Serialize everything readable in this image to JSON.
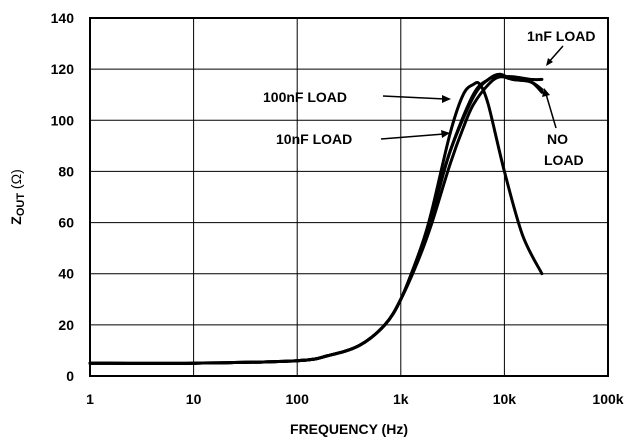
{
  "chart_data": {
    "type": "line",
    "xlabel": "FREQUENCY (Hz)",
    "ylabel_main": "Z",
    "ylabel_sub": "OUT",
    "ylabel_unit": " (Ω)",
    "xscale": "log",
    "xlim": [
      1,
      100000
    ],
    "ylim": [
      0,
      140
    ],
    "grid": true,
    "x_ticks": [
      {
        "value": 1,
        "label": "1"
      },
      {
        "value": 10,
        "label": "10"
      },
      {
        "value": 100,
        "label": "100"
      },
      {
        "value": 1000,
        "label": "1k"
      },
      {
        "value": 10000,
        "label": "10k"
      },
      {
        "value": 100000,
        "label": "100k"
      }
    ],
    "y_ticks": [
      {
        "value": 0,
        "label": "0"
      },
      {
        "value": 20,
        "label": "20"
      },
      {
        "value": 40,
        "label": "40"
      },
      {
        "value": 60,
        "label": "60"
      },
      {
        "value": 80,
        "label": "80"
      },
      {
        "value": 100,
        "label": "100"
      },
      {
        "value": 120,
        "label": "120"
      },
      {
        "value": 140,
        "label": "140"
      }
    ],
    "series": [
      {
        "name": "100nF LOAD",
        "x": [
          1,
          10,
          100,
          200,
          400,
          700,
          1000,
          1500,
          2000,
          3000,
          4000,
          5000,
          5800,
          7000,
          10000,
          15000,
          23000
        ],
        "y": [
          5,
          5,
          6,
          8,
          12,
          20,
          30,
          47,
          65,
          95,
          110,
          114,
          114,
          106,
          80,
          55,
          40
        ]
      },
      {
        "name": "10nF LOAD",
        "x": [
          1,
          10,
          100,
          200,
          400,
          700,
          1000,
          1500,
          2000,
          3000,
          4000,
          5000,
          7000,
          9000,
          12000,
          18000,
          23000
        ],
        "y": [
          5,
          5,
          6,
          8,
          12,
          20,
          30,
          46,
          60,
          83,
          97,
          106,
          114,
          117,
          116,
          115,
          112
        ]
      },
      {
        "name": "1nF LOAD",
        "x": [
          1,
          10,
          100,
          200,
          400,
          700,
          1000,
          1500,
          2000,
          3000,
          5000,
          7000,
          9000,
          12000,
          18000,
          23000
        ],
        "y": [
          5,
          5,
          6,
          8,
          12,
          20,
          30,
          48,
          64,
          88,
          109,
          116,
          117,
          117,
          116,
          116
        ]
      },
      {
        "name": "NO LOAD",
        "x": [
          1,
          10,
          100,
          200,
          400,
          700,
          1000,
          1500,
          2000,
          3000,
          5000,
          7000,
          9000,
          12000,
          18000,
          23000
        ],
        "y": [
          5,
          5,
          6,
          8,
          12,
          20,
          30,
          48,
          63,
          88,
          110,
          116,
          118,
          116,
          115,
          111
        ]
      }
    ],
    "annotations": [
      {
        "text": "1nF LOAD",
        "series": "1nF LOAD"
      },
      {
        "text": "100nF LOAD",
        "series": "100nF LOAD"
      },
      {
        "text": "10nF LOAD",
        "series": "10nF LOAD"
      },
      {
        "text": "NO",
        "series": "NO LOAD"
      },
      {
        "text": "LOAD",
        "series": "NO LOAD"
      }
    ]
  }
}
